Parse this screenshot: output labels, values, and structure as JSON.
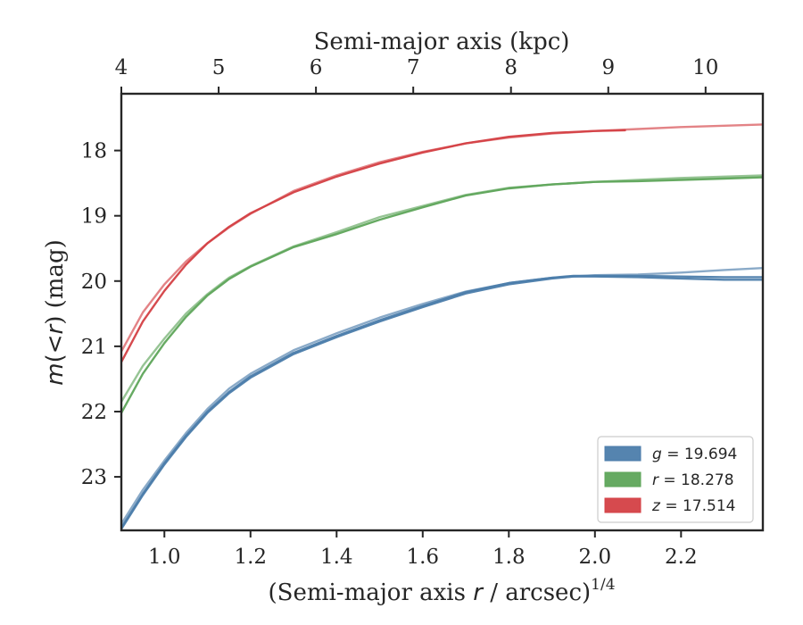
{
  "chart_data": {
    "type": "line",
    "xlabel": "(Semi-major axis r / arcsec)",
    "xlabel_parts": {
      "pre": "(Semi-major axis ",
      "var": "r",
      "post": " / arcsec)",
      "sup": "1/4"
    },
    "ylabel_parts": {
      "var1": "m",
      "op": "(<",
      "var2": "r",
      "post": ") (mag)"
    },
    "top_xlabel": "Semi-major axis (kpc)",
    "xlim": [
      0.9,
      2.39
    ],
    "ylim": [
      23.82,
      17.13
    ],
    "y_inverted": true,
    "xticks": [
      1.0,
      1.2,
      1.4,
      1.6,
      1.8,
      2.0,
      2.2
    ],
    "xtick_labels": [
      "1.0",
      "1.2",
      "1.4",
      "1.6",
      "1.8",
      "2.0",
      "2.2"
    ],
    "yticks": [
      18,
      19,
      20,
      21,
      22,
      23
    ],
    "ytick_labels": [
      "18",
      "19",
      "20",
      "21",
      "22",
      "23"
    ],
    "top_xticks_kpc": [
      4,
      5,
      6,
      7,
      8,
      9,
      10
    ],
    "top_xtick_labels": [
      "4",
      "5",
      "6",
      "7",
      "8",
      "9",
      "10"
    ],
    "top_xticks_at_bottom_x": [
      0.9,
      1.126,
      1.352,
      1.578,
      1.805,
      2.031,
      2.257
    ],
    "legend_position": "lower-right",
    "series": [
      {
        "name": "g = 19.694",
        "legend": {
          "var": "g",
          "eq": " = 19.694"
        },
        "color": "#4c7dab",
        "curves": [
          {
            "x": [
              0.9,
              0.95,
              1.0,
              1.05,
              1.1,
              1.15,
              1.2,
              1.3,
              1.4,
              1.5,
              1.6,
              1.7,
              1.8,
              1.9,
              2.0,
              2.1,
              2.2,
              2.3,
              2.39
            ],
            "y": [
              23.72,
              23.2,
              22.75,
              22.33,
              21.96,
              21.65,
              21.42,
              21.06,
              20.8,
              20.56,
              20.35,
              20.16,
              20.03,
              19.95,
              19.91,
              19.9,
              19.87,
              19.83,
              19.8
            ]
          },
          {
            "x": [
              0.9,
              0.95,
              1.0,
              1.05,
              1.1,
              1.15,
              1.2,
              1.3,
              1.4,
              1.5,
              1.6,
              1.7,
              1.8,
              1.9,
              1.95,
              2.0,
              2.1,
              2.2,
              2.3,
              2.39
            ],
            "y": [
              23.78,
              23.26,
              22.79,
              22.37,
              22.0,
              21.7,
              21.46,
              21.1,
              20.84,
              20.6,
              20.38,
              20.17,
              20.03,
              19.95,
              19.92,
              19.92,
              19.92,
              19.93,
              19.94,
              19.94
            ]
          },
          {
            "x": [
              0.9,
              0.95,
              1.0,
              1.05,
              1.1,
              1.15,
              1.2,
              1.3,
              1.4,
              1.5,
              1.6,
              1.7,
              1.8,
              1.9,
              1.95,
              2.0,
              2.1,
              2.2,
              2.3,
              2.39
            ],
            "y": [
              23.8,
              23.28,
              22.81,
              22.39,
              22.02,
              21.72,
              21.48,
              21.12,
              20.86,
              20.62,
              20.4,
              20.19,
              20.05,
              19.96,
              19.93,
              19.93,
              19.94,
              19.96,
              19.98,
              19.98
            ]
          }
        ]
      },
      {
        "name": "r = 18.278",
        "legend": {
          "var": "r",
          "eq": " = 18.278"
        },
        "color": "#5ea55a",
        "curves": [
          {
            "x": [
              0.9,
              0.95,
              1.0,
              1.05,
              1.1,
              1.15,
              1.2,
              1.3,
              1.4,
              1.5,
              1.6,
              1.7,
              1.8,
              1.9,
              2.0,
              2.1,
              2.2,
              2.3,
              2.39
            ],
            "y": [
              21.85,
              21.3,
              20.88,
              20.5,
              20.2,
              19.95,
              19.77,
              19.47,
              19.25,
              19.02,
              18.85,
              18.68,
              18.57,
              18.52,
              18.48,
              18.45,
              18.42,
              18.4,
              18.38
            ]
          },
          {
            "x": [
              0.9,
              0.95,
              1.0,
              1.05,
              1.1,
              1.15,
              1.2,
              1.3,
              1.4,
              1.5,
              1.6,
              1.7,
              1.8,
              1.9,
              2.0,
              2.1,
              2.2,
              2.3,
              2.39
            ],
            "y": [
              22.02,
              21.42,
              20.95,
              20.55,
              20.22,
              19.97,
              19.78,
              19.48,
              19.28,
              19.06,
              18.87,
              18.69,
              18.58,
              18.52,
              18.48,
              18.47,
              18.45,
              18.43,
              18.41
            ]
          }
        ]
      },
      {
        "name": "z = 17.514",
        "legend": {
          "var": "z",
          "eq": " = 17.514"
        },
        "color": "#d44045",
        "curves": [
          {
            "x": [
              0.9,
              0.95,
              1.0,
              1.05,
              1.1,
              1.15,
              1.2,
              1.3,
              1.4,
              1.5,
              1.6,
              1.7,
              1.8,
              1.9,
              2.0,
              2.1,
              2.2,
              2.3,
              2.39
            ],
            "y": [
              21.08,
              20.48,
              20.05,
              19.7,
              19.42,
              19.18,
              18.97,
              18.62,
              18.38,
              18.18,
              18.02,
              17.89,
              17.8,
              17.74,
              17.7,
              17.67,
              17.64,
              17.62,
              17.6
            ]
          },
          {
            "x": [
              0.9,
              0.95,
              1.0,
              1.05,
              1.1,
              1.15,
              1.2,
              1.3,
              1.4,
              1.5,
              1.6,
              1.7,
              1.8,
              1.9,
              2.0,
              2.07
            ],
            "y": [
              21.24,
              20.62,
              20.15,
              19.75,
              19.42,
              19.17,
              18.96,
              18.64,
              18.4,
              18.2,
              18.03,
              17.89,
              17.79,
              17.73,
              17.7,
              17.69
            ]
          }
        ]
      }
    ]
  }
}
